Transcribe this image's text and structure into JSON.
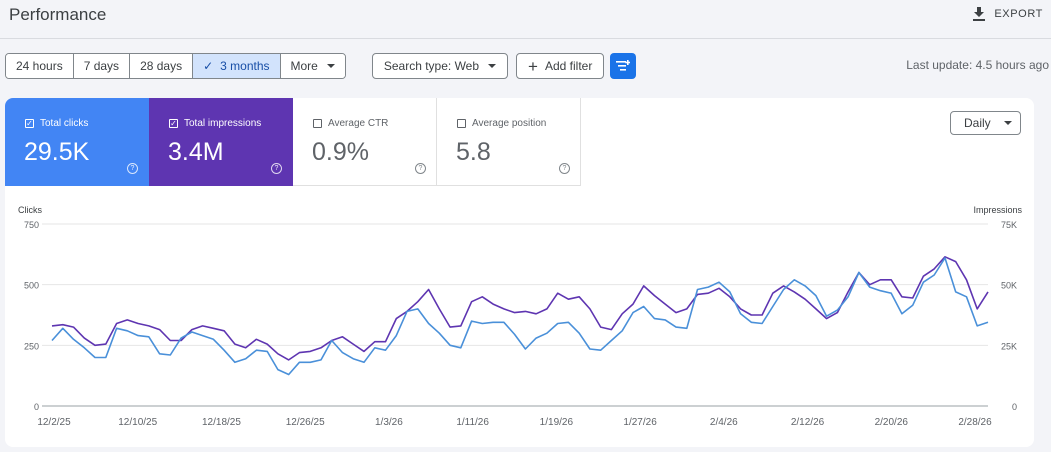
{
  "header": {
    "title": "Performance",
    "export_label": "EXPORT"
  },
  "date_range": {
    "buttons": [
      "24 hours",
      "7 days",
      "28 days",
      "3 months",
      "More"
    ],
    "active": "3 months"
  },
  "filters": {
    "search_type": "Search type: Web",
    "add_filter": "Add filter"
  },
  "last_update": "Last update: 4.5 hours ago",
  "metrics": [
    {
      "label": "Total clicks",
      "value": "29.5K",
      "checked": true,
      "color": "#4285f4"
    },
    {
      "label": "Total impressions",
      "value": "3.4M",
      "checked": true,
      "color": "#5e35b1"
    },
    {
      "label": "Average CTR",
      "value": "0.9%",
      "checked": false
    },
    {
      "label": "Average position",
      "value": "5.8",
      "checked": false
    }
  ],
  "granularity": "Daily",
  "chart_data": {
    "type": "line",
    "left_axis": {
      "label": "Clicks",
      "ticks": [
        "750",
        "500",
        "250",
        "0"
      ],
      "range": [
        0,
        750
      ]
    },
    "right_axis": {
      "label": "Impressions",
      "ticks": [
        "75K",
        "50K",
        "25K",
        "0"
      ],
      "range": [
        0,
        75000
      ]
    },
    "x_labels": [
      "12/2/25",
      "12/10/25",
      "12/18/25",
      "12/26/25",
      "1/3/26",
      "1/11/26",
      "1/19/26",
      "1/27/26",
      "2/4/26",
      "2/12/26",
      "2/20/26",
      "2/28/26"
    ],
    "grid": true,
    "series": [
      {
        "name": "Total clicks",
        "axis": "left",
        "color": "#4a90d9",
        "values": [
          270,
          320,
          275,
          240,
          200,
          200,
          320,
          310,
          290,
          285,
          215,
          210,
          280,
          305,
          290,
          275,
          230,
          180,
          195,
          230,
          225,
          150,
          130,
          180,
          180,
          190,
          270,
          220,
          195,
          180,
          240,
          230,
          290,
          390,
          400,
          340,
          300,
          250,
          240,
          350,
          340,
          345,
          345,
          295,
          235,
          280,
          300,
          340,
          345,
          300,
          235,
          230,
          270,
          310,
          385,
          410,
          360,
          355,
          325,
          320,
          480,
          490,
          510,
          470,
          380,
          345,
          340,
          410,
          480,
          520,
          495,
          455,
          370,
          395,
          450,
          550,
          490,
          475,
          465,
          380,
          415,
          510,
          540,
          610,
          470,
          450,
          330,
          345
        ]
      },
      {
        "name": "Total impressions",
        "axis": "right",
        "color": "#5e35b1",
        "values": [
          33000,
          33500,
          32500,
          28000,
          25000,
          25500,
          34000,
          35500,
          34000,
          33000,
          31500,
          27000,
          27000,
          31500,
          33000,
          32000,
          31000,
          25500,
          24000,
          27500,
          25500,
          21500,
          19000,
          22000,
          22500,
          24000,
          27000,
          28500,
          25500,
          22500,
          26500,
          26500,
          36000,
          39000,
          43000,
          48000,
          40000,
          32500,
          33000,
          43000,
          45000,
          42000,
          40000,
          38500,
          39000,
          38000,
          40000,
          46500,
          44000,
          45000,
          40000,
          32500,
          31500,
          38000,
          42000,
          49500,
          45500,
          42000,
          38500,
          40000,
          46000,
          46500,
          48500,
          45000,
          40000,
          37500,
          37500,
          46500,
          49500,
          47000,
          44000,
          40000,
          36000,
          38500,
          47000,
          55000,
          50000,
          52000,
          52000,
          45000,
          44500,
          53500,
          56500,
          61500,
          59500,
          52000,
          40000,
          47000
        ]
      }
    ]
  }
}
